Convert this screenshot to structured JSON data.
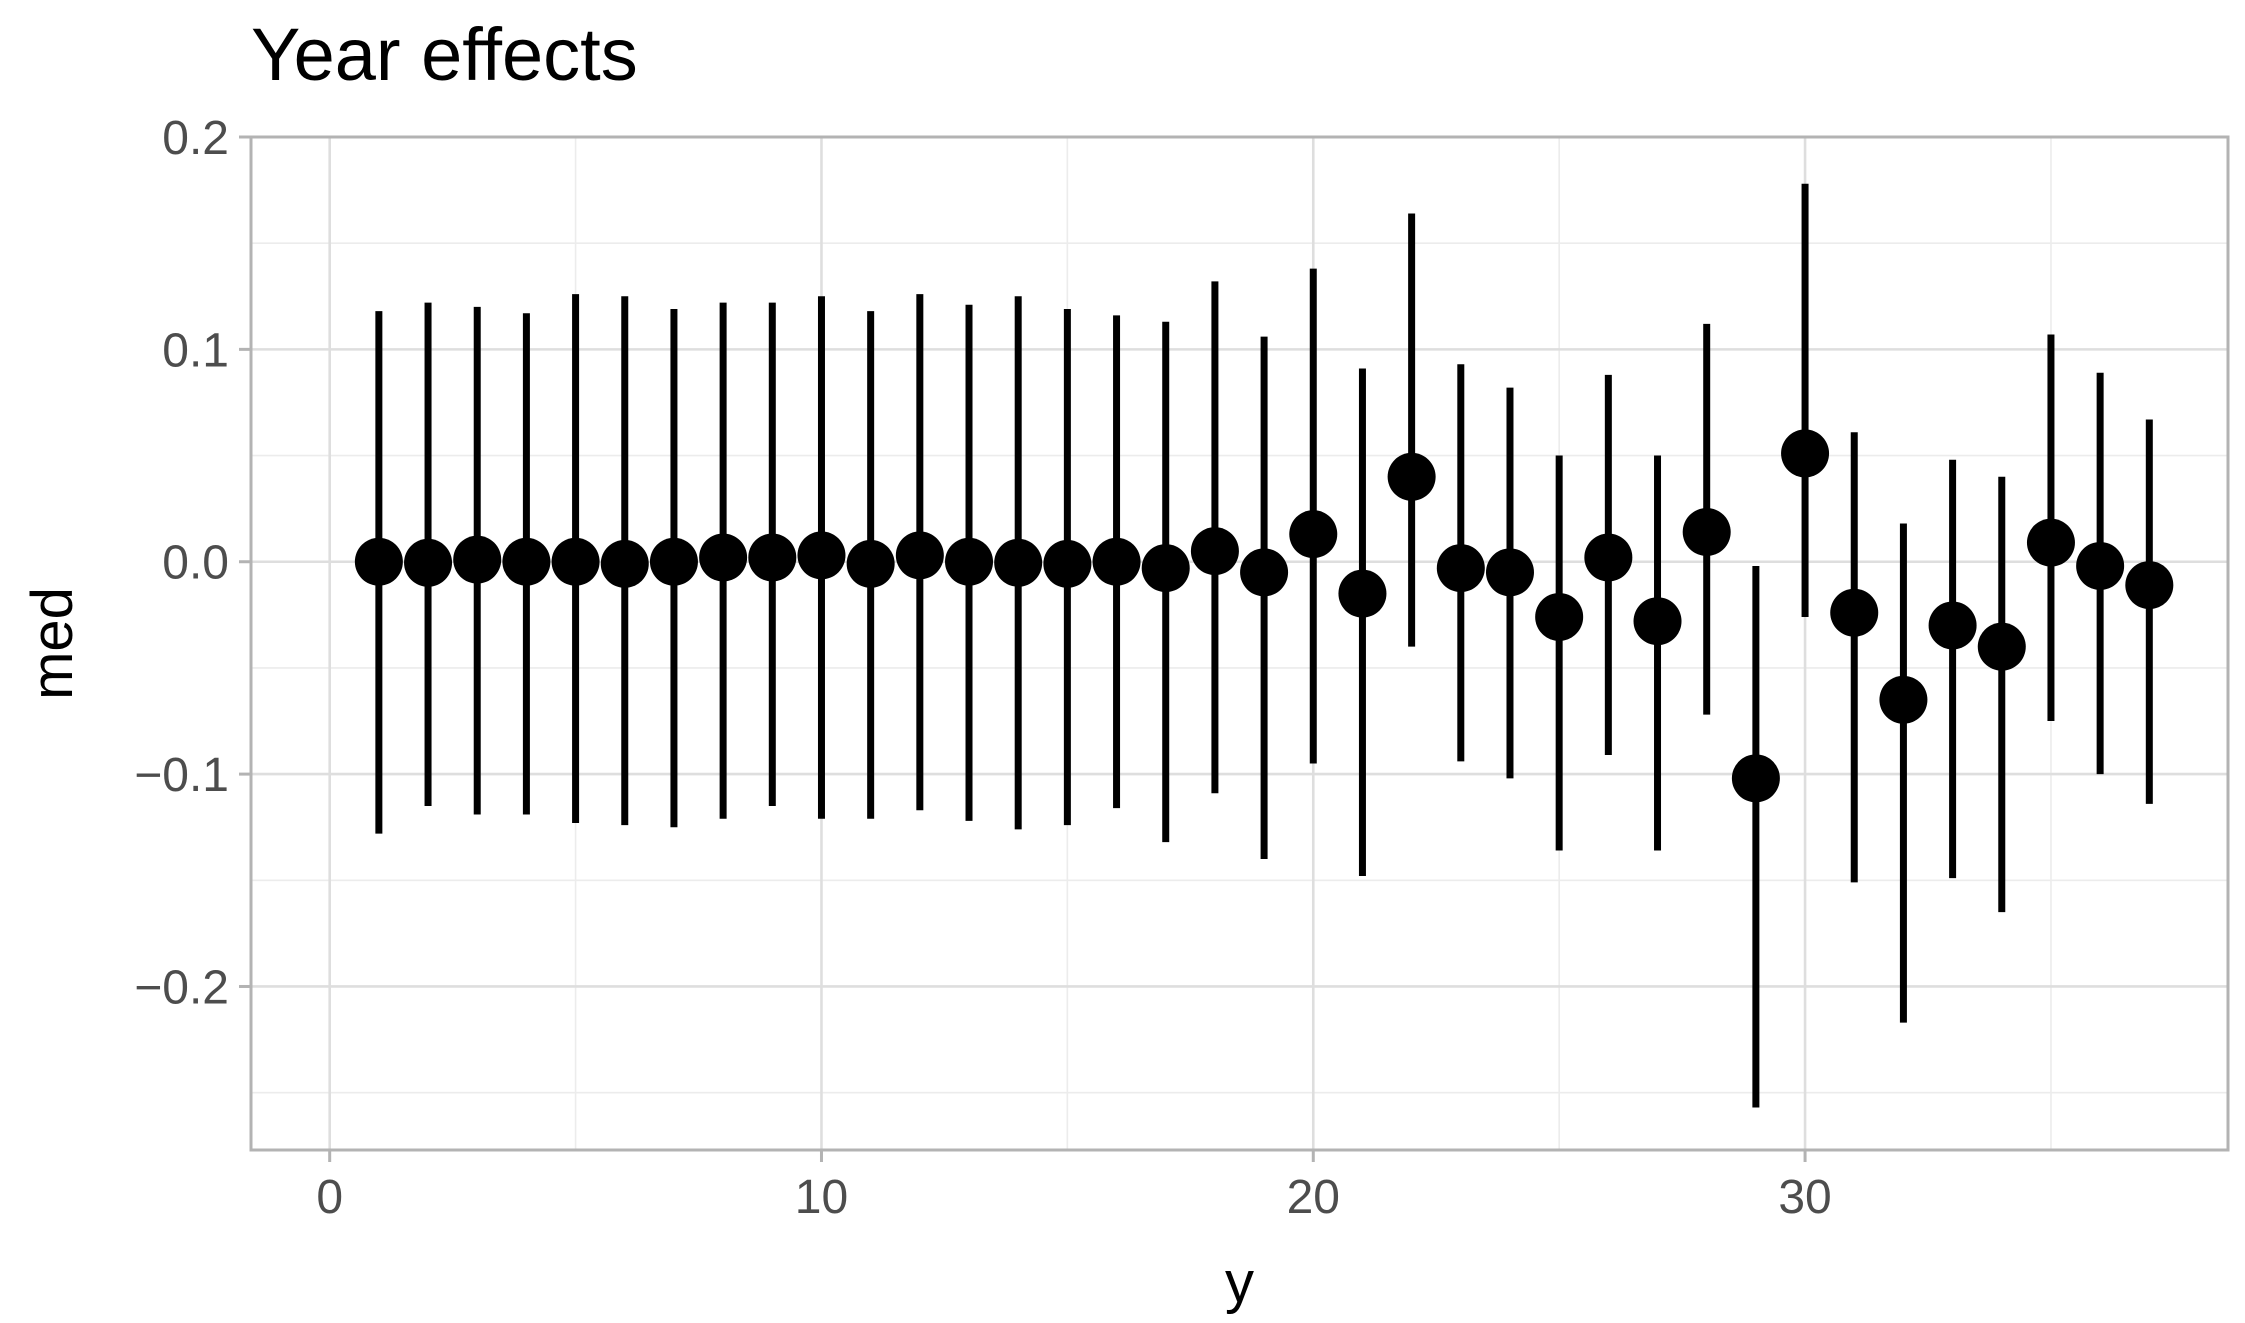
{
  "chart_data": {
    "type": "scatter",
    "title": "Year effects",
    "xlabel": "y",
    "ylabel": "med",
    "xlim": [
      -1.6,
      38.6
    ],
    "ylim": [
      -0.277,
      0.2
    ],
    "x_ticks": [
      0,
      10,
      20,
      30
    ],
    "x_tick_labels": [
      "0",
      "10",
      "20",
      "30"
    ],
    "y_ticks": [
      -0.2,
      -0.1,
      0.0,
      0.1,
      0.2
    ],
    "y_tick_labels": [
      "−0.2",
      "−0.1",
      "0.0",
      "0.1",
      "0.2"
    ],
    "grid": true,
    "error_bars": true,
    "colors": {
      "points": "#000000",
      "panel_border": "#b3b3b3",
      "grid_major": "#dedede",
      "grid_minor": "#ececec",
      "tick_label": "#4d4d4d"
    },
    "series": [
      {
        "x": [
          1,
          2,
          3,
          4,
          5,
          6,
          7,
          8,
          9,
          10,
          11,
          12,
          13,
          14,
          15,
          16,
          17,
          18,
          19,
          20,
          21,
          22,
          23,
          24,
          25,
          26,
          27,
          28,
          29,
          30,
          31,
          32,
          33,
          34,
          35,
          36,
          37
        ],
        "y": [
          0.0,
          -0.0005,
          0.001,
          0.0,
          0.0,
          -0.001,
          0.0,
          0.002,
          0.002,
          0.003,
          -0.001,
          0.003,
          0.0,
          -0.0005,
          -0.001,
          0.0,
          -0.003,
          0.005,
          -0.005,
          0.013,
          -0.015,
          0.04,
          -0.003,
          -0.005,
          -0.026,
          0.002,
          -0.028,
          0.014,
          -0.102,
          0.051,
          -0.024,
          -0.065,
          -0.03,
          -0.04,
          0.009,
          -0.002,
          -0.011
        ],
        "lower": [
          -0.128,
          -0.115,
          -0.119,
          -0.119,
          -0.123,
          -0.124,
          -0.125,
          -0.121,
          -0.115,
          -0.121,
          -0.121,
          -0.117,
          -0.122,
          -0.126,
          -0.124,
          -0.116,
          -0.132,
          -0.109,
          -0.14,
          -0.095,
          -0.148,
          -0.04,
          -0.094,
          -0.102,
          -0.136,
          -0.091,
          -0.136,
          -0.072,
          -0.257,
          -0.026,
          -0.151,
          -0.217,
          -0.149,
          -0.165,
          -0.075,
          -0.1,
          -0.114
        ],
        "upper": [
          0.118,
          0.122,
          0.12,
          0.117,
          0.126,
          0.125,
          0.119,
          0.122,
          0.122,
          0.125,
          0.118,
          0.126,
          0.121,
          0.125,
          0.119,
          0.116,
          0.113,
          0.132,
          0.106,
          0.138,
          0.091,
          0.164,
          0.093,
          0.082,
          0.05,
          0.088,
          0.05,
          0.112,
          -0.002,
          0.178,
          0.061,
          0.018,
          0.048,
          0.04,
          0.107,
          0.089,
          0.067
        ]
      }
    ]
  }
}
